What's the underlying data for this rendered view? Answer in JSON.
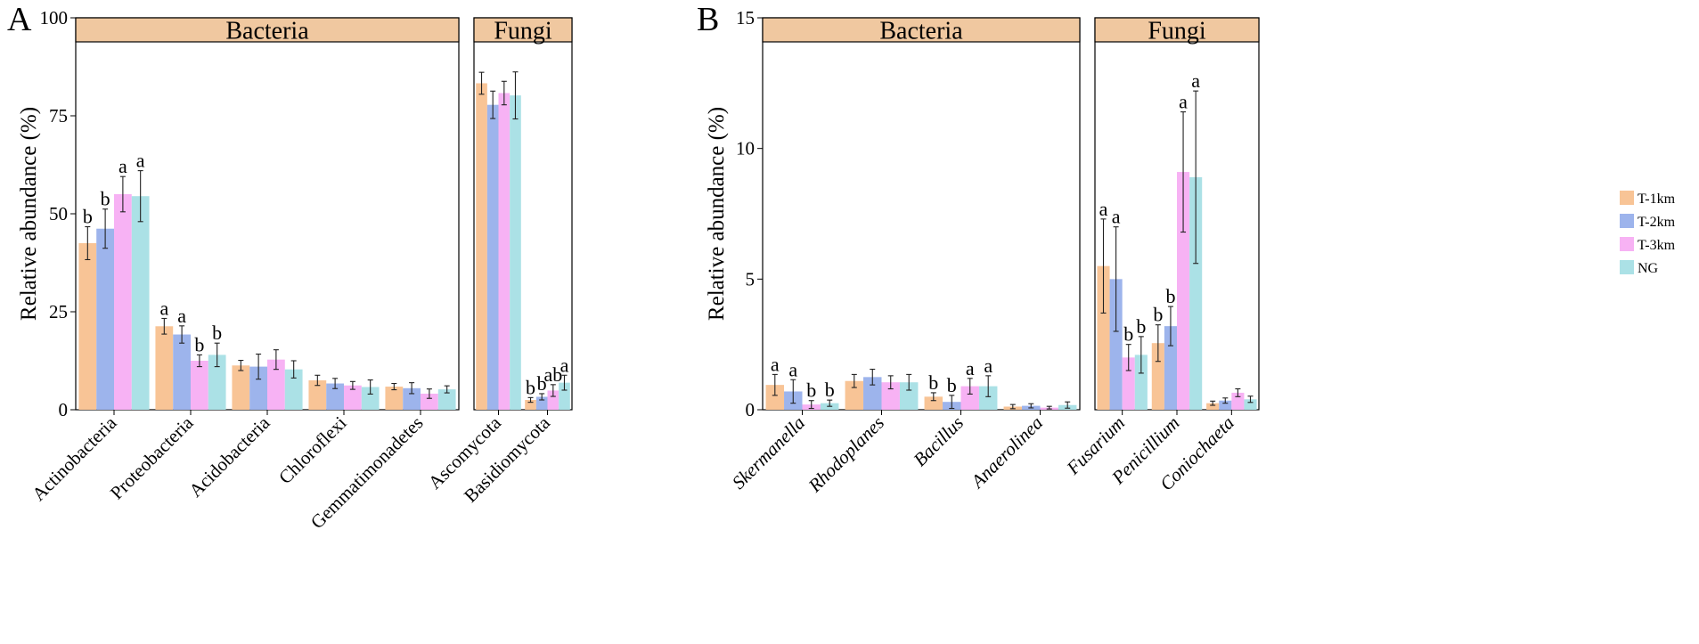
{
  "chart_data": [
    {
      "type": "bar",
      "panel": "A",
      "ylabel": "Relative abundance (%)",
      "ylim": [
        0,
        100
      ],
      "yticks": [
        0,
        25,
        50,
        75,
        100
      ],
      "series_names": [
        "T-1km",
        "T-2km",
        "T-3km",
        "NG"
      ],
      "facets": [
        {
          "title": "Bacteria",
          "groups": [
            {
              "name": "Actinobacteria",
              "italic": false,
              "values": [
                42.5,
                46.2,
                55.0,
                54.5
              ],
              "errors": [
                4.2,
                5.0,
                4.5,
                6.5
              ],
              "labels": [
                "b",
                "b",
                "a",
                "a"
              ]
            },
            {
              "name": "Proteobacteria",
              "italic": false,
              "values": [
                21.3,
                19.2,
                12.5,
                14.0
              ],
              "errors": [
                2.0,
                2.2,
                1.5,
                3.0
              ],
              "labels": [
                "a",
                "a",
                "b",
                "b"
              ]
            },
            {
              "name": "Acidobacteria",
              "italic": false,
              "values": [
                11.3,
                11.0,
                12.8,
                10.3
              ],
              "errors": [
                1.3,
                3.2,
                2.5,
                2.2
              ],
              "labels": [
                "",
                "",
                "",
                ""
              ]
            },
            {
              "name": "Chloroflexi",
              "italic": false,
              "values": [
                7.5,
                6.7,
                6.2,
                5.8
              ],
              "errors": [
                1.3,
                1.3,
                1.0,
                1.8
              ],
              "labels": [
                "",
                "",
                "",
                ""
              ]
            },
            {
              "name": "Gemmatimonadetes",
              "italic": false,
              "values": [
                5.9,
                5.5,
                4.1,
                5.2
              ],
              "errors": [
                0.8,
                1.4,
                1.2,
                0.9
              ],
              "labels": [
                "",
                "",
                "",
                ""
              ]
            }
          ]
        },
        {
          "title": "Fungi",
          "groups": [
            {
              "name": "Ascomycota",
              "italic": false,
              "values": [
                83.3,
                77.8,
                80.8,
                80.2
              ],
              "errors": [
                2.8,
                3.5,
                3.0,
                6.0
              ],
              "labels": [
                "",
                "",
                "",
                ""
              ]
            },
            {
              "name": "Basidiomycota",
              "italic": false,
              "values": [
                2.5,
                3.3,
                4.9,
                6.9
              ],
              "errors": [
                0.6,
                0.8,
                1.5,
                1.9
              ],
              "labels": [
                "b",
                "b",
                "ab",
                "a"
              ]
            }
          ]
        }
      ]
    },
    {
      "type": "bar",
      "panel": "B",
      "ylabel": "Relative abundance (%)",
      "ylim": [
        0,
        15
      ],
      "yticks": [
        0,
        5,
        10,
        15
      ],
      "series_names": [
        "T-1km",
        "T-2km",
        "T-3km",
        "NG"
      ],
      "facets": [
        {
          "title": "Bacteria",
          "groups": [
            {
              "name": "Skermanella",
              "italic": true,
              "values": [
                0.95,
                0.7,
                0.2,
                0.25
              ],
              "errors": [
                0.4,
                0.45,
                0.15,
                0.12
              ],
              "labels": [
                "a",
                "a",
                "b",
                "b"
              ]
            },
            {
              "name": "Rhodoplanes",
              "italic": true,
              "values": [
                1.1,
                1.25,
                1.05,
                1.05
              ],
              "errors": [
                0.25,
                0.3,
                0.25,
                0.3
              ],
              "labels": [
                "",
                "",
                "",
                ""
              ]
            },
            {
              "name": "Bacillus",
              "italic": true,
              "values": [
                0.5,
                0.3,
                0.9,
                0.9
              ],
              "errors": [
                0.15,
                0.25,
                0.3,
                0.4
              ],
              "labels": [
                "b",
                "b",
                "a",
                "a"
              ]
            },
            {
              "name": "Anaerolinea",
              "italic": true,
              "values": [
                0.12,
                0.15,
                0.08,
                0.18
              ],
              "errors": [
                0.08,
                0.08,
                0.05,
                0.12
              ],
              "labels": [
                "",
                "",
                "",
                ""
              ]
            }
          ]
        },
        {
          "title": "Fungi",
          "groups": [
            {
              "name": "Fusarium",
              "italic": true,
              "values": [
                5.5,
                5.0,
                2.0,
                2.1
              ],
              "errors": [
                1.8,
                2.0,
                0.5,
                0.7
              ],
              "labels": [
                "a",
                "a",
                "b",
                "b"
              ]
            },
            {
              "name": "Penicillium",
              "italic": true,
              "values": [
                2.55,
                3.2,
                9.1,
                8.9
              ],
              "errors": [
                0.7,
                0.75,
                2.3,
                3.3
              ],
              "labels": [
                "b",
                "b",
                "a",
                "a"
              ]
            },
            {
              "name": "Coniochaeta",
              "italic": true,
              "values": [
                0.25,
                0.35,
                0.65,
                0.4
              ],
              "errors": [
                0.08,
                0.1,
                0.15,
                0.12
              ],
              "labels": [
                "",
                "",
                "",
                ""
              ]
            }
          ]
        }
      ]
    }
  ],
  "legend": {
    "items": [
      {
        "name": "T-1km",
        "color": "#F8C496"
      },
      {
        "name": "T-2km",
        "color": "#9DB4EC"
      },
      {
        "name": "T-3km",
        "color": "#F7B2F4"
      },
      {
        "name": "NG",
        "color": "#ABE1E6"
      }
    ]
  },
  "colors": {
    "strip_fill": "#F0C8A0",
    "series": [
      "#F8C496",
      "#9DB4EC",
      "#F7B2F4",
      "#ABE1E6"
    ]
  }
}
